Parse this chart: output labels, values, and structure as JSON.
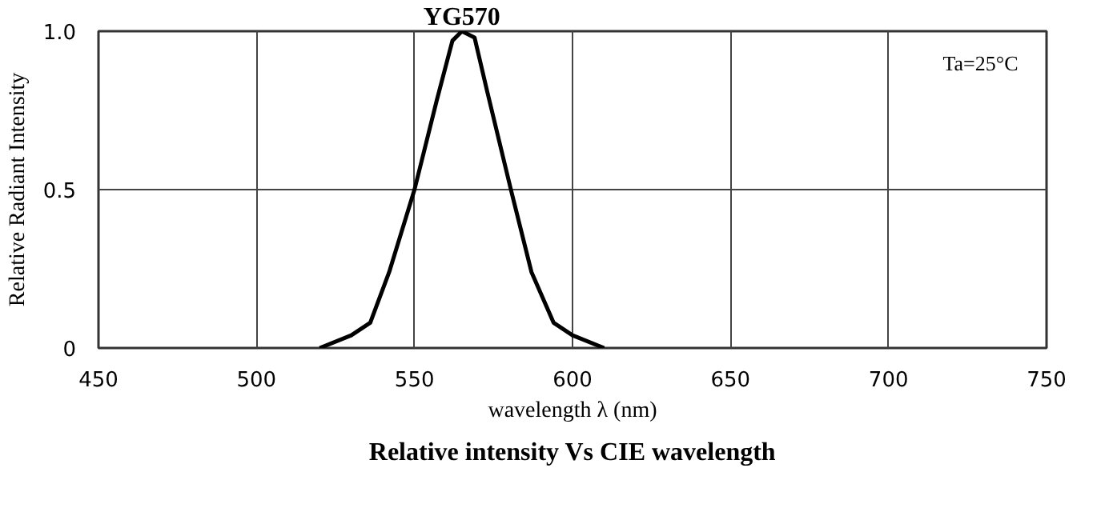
{
  "chart_data": {
    "type": "line",
    "title": "Relative intensity Vs CIE wavelength",
    "xlabel": "wavelength λ (nm)",
    "ylabel": "Relative Radiant Intensity",
    "x": [
      520,
      530,
      536,
      542,
      550,
      557,
      562,
      565,
      569,
      573,
      580.5,
      587,
      594,
      600,
      610
    ],
    "series": [
      {
        "name": "YG570",
        "color": "#000000",
        "values": [
          0,
          0.04,
          0.08,
          0.24,
          0.5,
          0.78,
          0.97,
          1.0,
          0.98,
          0.81,
          0.5,
          0.24,
          0.08,
          0.04,
          0
        ]
      }
    ],
    "xlim": [
      450,
      750
    ],
    "xticks": [
      450,
      500,
      550,
      600,
      650,
      700,
      750
    ],
    "ylim": [
      0,
      1
    ],
    "yticks": [
      0,
      0.5,
      {
        "value": 1,
        "label": "1.0"
      }
    ],
    "grid": true,
    "line_style": "solid",
    "marker": "none",
    "annotations": [
      "Ta=25°C"
    ]
  }
}
